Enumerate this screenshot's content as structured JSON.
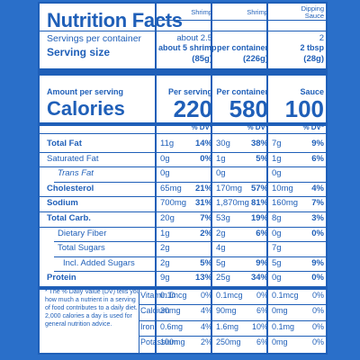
{
  "title": "Nutrition Facts",
  "servings_per_container_label": "Servings per container",
  "serving_size_label": "Serving size",
  "columns": [
    {
      "name": "Shrimp",
      "servings": "about 2.5",
      "size_line1": "about 5 shrimp",
      "size_line2": "(85g)",
      "cal_header": "Per serving",
      "calories": "220"
    },
    {
      "name": "Shrimp",
      "servings": "",
      "size_line1": "per container",
      "size_line2": "(226g)",
      "cal_header": "Per container",
      "calories": "580"
    },
    {
      "name_line1": "Dipping",
      "name": "Sauce",
      "servings": "2",
      "size_line1": "2 tbsp",
      "size_line2": "(28g)",
      "cal_header": "Sauce",
      "calories": "100"
    }
  ],
  "amount_per_serving_label": "Amount per serving",
  "calories_label": "Calories",
  "dv_header": "% DV*",
  "nutrients": [
    {
      "name": "Total Fat",
      "bold": true,
      "indent": 0,
      "v": [
        [
          "11g",
          "14%"
        ],
        [
          "30g",
          "38%"
        ],
        [
          "7g",
          "9%"
        ]
      ]
    },
    {
      "name": "Saturated Fat",
      "bold": false,
      "indent": 0,
      "v": [
        [
          "0g",
          "0%"
        ],
        [
          "1g",
          "5%"
        ],
        [
          "1g",
          "6%"
        ]
      ]
    },
    {
      "name": "Trans Fat",
      "bold": false,
      "italic_word": true,
      "indent": 1,
      "v": [
        [
          "0g",
          ""
        ],
        [
          "0g",
          ""
        ],
        [
          "0g",
          ""
        ]
      ]
    },
    {
      "name": "Cholesterol",
      "bold": true,
      "indent": 0,
      "v": [
        [
          "65mg",
          "21%"
        ],
        [
          "170mg",
          "57%"
        ],
        [
          "10mg",
          "4%"
        ]
      ]
    },
    {
      "name": "Sodium",
      "bold": true,
      "indent": 0,
      "v": [
        [
          "700mg",
          "31%"
        ],
        [
          "1,870mg",
          "81%"
        ],
        [
          "160mg",
          "7%"
        ]
      ]
    },
    {
      "name": "Total Carb.",
      "bold": true,
      "indent": 0,
      "v": [
        [
          "20g",
          "7%"
        ],
        [
          "53g",
          "19%"
        ],
        [
          "8g",
          "3%"
        ]
      ]
    },
    {
      "name": "Dietary Fiber",
      "bold": false,
      "indent": 1,
      "v": [
        [
          "1g",
          "2%"
        ],
        [
          "2g",
          "6%"
        ],
        [
          "0g",
          "0%"
        ]
      ]
    },
    {
      "name": "Total Sugars",
      "bold": false,
      "indent": 1,
      "v": [
        [
          "2g",
          ""
        ],
        [
          "4g",
          ""
        ],
        [
          "7g",
          ""
        ]
      ]
    },
    {
      "name": "Incl. Added Sugars",
      "bold": false,
      "indent": 2,
      "v": [
        [
          "2g",
          "5%"
        ],
        [
          "5g",
          "9%"
        ],
        [
          "5g",
          "9%"
        ]
      ]
    },
    {
      "name": "Protein",
      "bold": true,
      "indent": 0,
      "v": [
        [
          "9g",
          "13%"
        ],
        [
          "25g",
          "34%"
        ],
        [
          "0g",
          "0%"
        ]
      ]
    }
  ],
  "vitamins": [
    {
      "name": "Vitamin D",
      "v": [
        [
          "0.1mcg",
          "0%"
        ],
        [
          "0.1mcg",
          "0%"
        ],
        [
          "0.1mcg",
          "0%"
        ]
      ]
    },
    {
      "name": "Calcium",
      "v": [
        [
          "30mg",
          "4%"
        ],
        [
          "90mg",
          "6%"
        ],
        [
          "0mg",
          "0%"
        ]
      ]
    },
    {
      "name": "Iron",
      "v": [
        [
          "0.6mg",
          "4%"
        ],
        [
          "1.6mg",
          "10%"
        ],
        [
          "0.1mg",
          "0%"
        ]
      ]
    },
    {
      "name": "Potassium",
      "v": [
        [
          "100mg",
          "2%"
        ],
        [
          "250mg",
          "6%"
        ],
        [
          "0mg",
          "0%"
        ]
      ]
    }
  ],
  "footnote": "* The % Daily Value (DV) tells you how much a nutrient in a serving of food contributes to a daily diet. 2,000 calories a day is used for general nutrition advice."
}
